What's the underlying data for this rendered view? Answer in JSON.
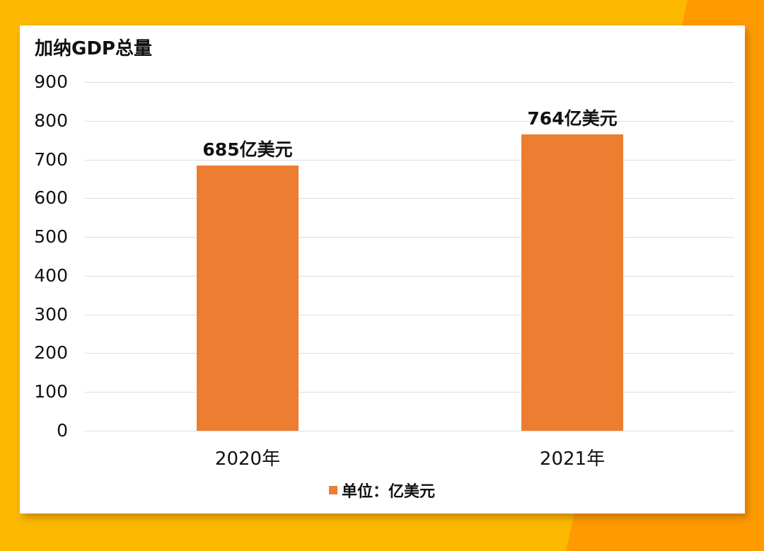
{
  "chart_data": {
    "type": "bar",
    "title": "加纳GDP总量",
    "categories": [
      "2020年",
      "2021年"
    ],
    "series": [
      {
        "name": "单位：亿美元",
        "values": [
          685,
          764
        ],
        "color": "#ED7D31"
      }
    ],
    "data_labels": [
      "685亿美元",
      "764亿美元"
    ],
    "xlabel": "",
    "ylabel": "",
    "ylim": [
      0,
      900
    ],
    "yticks": [
      "0",
      "100",
      "200",
      "300",
      "400",
      "500",
      "600",
      "700",
      "800",
      "900"
    ],
    "grid": true,
    "legend_position": "bottom"
  },
  "colors": {
    "background": "#FDB900",
    "accent": "#FF9A00",
    "bar": "#ED7D31"
  }
}
